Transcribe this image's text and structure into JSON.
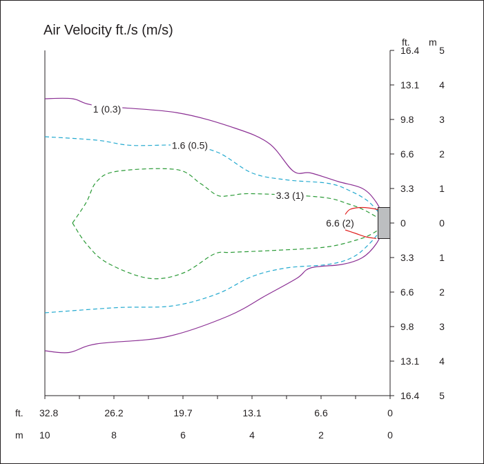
{
  "chart_data": {
    "type": "line",
    "title": "Air Velocity ft./s (m/s)",
    "x_units": {
      "primary": "ft.",
      "secondary": "m"
    },
    "y_units": {
      "primary": "ft.",
      "secondary": "m"
    },
    "x_ticks_ft": [
      "32.8",
      "26.2",
      "19.7",
      "13.1",
      "6.6",
      "0"
    ],
    "x_ticks_m": [
      "10",
      "8",
      "6",
      "4",
      "2",
      "0"
    ],
    "y_ticks_ft": [
      "16.4",
      "13.1",
      "9.8",
      "6.6",
      "3.3",
      "0",
      "3.3",
      "6.6",
      "9.8",
      "13.1",
      "16.4"
    ],
    "y_ticks_m": [
      "5",
      "4",
      "3",
      "2",
      "1",
      "0",
      "1",
      "2",
      "3",
      "4",
      "5"
    ],
    "xlim_m": [
      10,
      0
    ],
    "ylim_m": [
      -5,
      5
    ],
    "grid": false,
    "source_box_m": {
      "x": [
        0.35,
        0
      ],
      "y": [
        -0.45,
        0.45
      ],
      "color": "#bcbec0"
    },
    "series": [
      {
        "label": "1 (0.3)",
        "color": "#8a2e93",
        "dash": "solid",
        "label_at_m": [
          8.2,
          3.3
        ],
        "upper": [
          [
            10,
            3.6
          ],
          [
            9.2,
            3.6
          ],
          [
            8.5,
            3.4
          ],
          [
            6.2,
            3.2
          ],
          [
            4.5,
            2.75
          ],
          [
            3.5,
            2.3
          ],
          [
            2.8,
            1.5
          ],
          [
            2.3,
            1.45
          ],
          [
            1.5,
            1.2
          ],
          [
            0.8,
            1.0
          ],
          [
            0.4,
            0.6
          ],
          [
            0.1,
            0
          ]
        ],
        "lower": [
          [
            10,
            -3.7
          ],
          [
            9.3,
            -3.75
          ],
          [
            8.5,
            -3.5
          ],
          [
            6.5,
            -3.3
          ],
          [
            4.7,
            -2.7
          ],
          [
            3.6,
            -2.1
          ],
          [
            2.7,
            -1.6
          ],
          [
            2.3,
            -1.3
          ],
          [
            1.4,
            -1.2
          ],
          [
            0.8,
            -1.0
          ],
          [
            0.4,
            -0.6
          ],
          [
            0.1,
            0
          ]
        ]
      },
      {
        "label": "1.6 (0.5)",
        "color": "#22a9cf",
        "dash": "6,4",
        "label_at_m": [
          5.8,
          2.25
        ],
        "upper": [
          [
            10,
            2.5
          ],
          [
            8.5,
            2.4
          ],
          [
            7.5,
            2.25
          ],
          [
            6.0,
            2.25
          ],
          [
            5.0,
            2.05
          ],
          [
            4.0,
            1.45
          ],
          [
            3.0,
            1.25
          ],
          [
            1.8,
            1.15
          ],
          [
            1.2,
            0.95
          ],
          [
            0.6,
            0.6
          ],
          [
            0.1,
            0
          ]
        ],
        "lower": [
          [
            10,
            -2.6
          ],
          [
            7.9,
            -2.45
          ],
          [
            6.3,
            -2.4
          ],
          [
            5.0,
            -2.05
          ],
          [
            4.0,
            -1.55
          ],
          [
            3.0,
            -1.3
          ],
          [
            1.8,
            -1.2
          ],
          [
            1.1,
            -1.0
          ],
          [
            0.6,
            -0.6
          ],
          [
            0.1,
            0
          ]
        ]
      },
      {
        "label": "3.3 (1)",
        "color": "#2a9a36",
        "dash": "6,4",
        "label_at_m": [
          2.9,
          0.8
        ],
        "upper": [
          [
            9.2,
            0
          ],
          [
            8.8,
            0.6
          ],
          [
            8.5,
            1.2
          ],
          [
            7.9,
            1.5
          ],
          [
            6.2,
            1.55
          ],
          [
            5.5,
            1.15
          ],
          [
            5.0,
            0.8
          ],
          [
            4.6,
            0.8
          ],
          [
            4.0,
            0.85
          ],
          [
            2.0,
            0.75
          ],
          [
            1.2,
            0.55
          ],
          [
            0.7,
            0.35
          ],
          [
            0.1,
            0
          ]
        ],
        "lower": [
          [
            9.2,
            0
          ],
          [
            8.8,
            -0.6
          ],
          [
            8.2,
            -1.15
          ],
          [
            7.0,
            -1.6
          ],
          [
            6.0,
            -1.45
          ],
          [
            5.1,
            -0.9
          ],
          [
            4.6,
            -0.85
          ],
          [
            3.5,
            -0.8
          ],
          [
            1.9,
            -0.7
          ],
          [
            1.0,
            -0.5
          ],
          [
            0.5,
            -0.3
          ],
          [
            0.1,
            0
          ]
        ]
      },
      {
        "label": "6.6 (2)",
        "color": "#e0201f",
        "dash": "solid",
        "label_at_m": [
          1.45,
          0
        ],
        "upper": [
          [
            1.3,
            0.25
          ],
          [
            1.15,
            0.4
          ],
          [
            0.8,
            0.45
          ],
          [
            0.4,
            0.4
          ],
          [
            0.3,
            0.35
          ]
        ],
        "lower": [
          [
            1.3,
            -0.2
          ],
          [
            1.0,
            -0.3
          ],
          [
            0.7,
            -0.4
          ],
          [
            0.4,
            -0.45
          ]
        ]
      }
    ]
  }
}
